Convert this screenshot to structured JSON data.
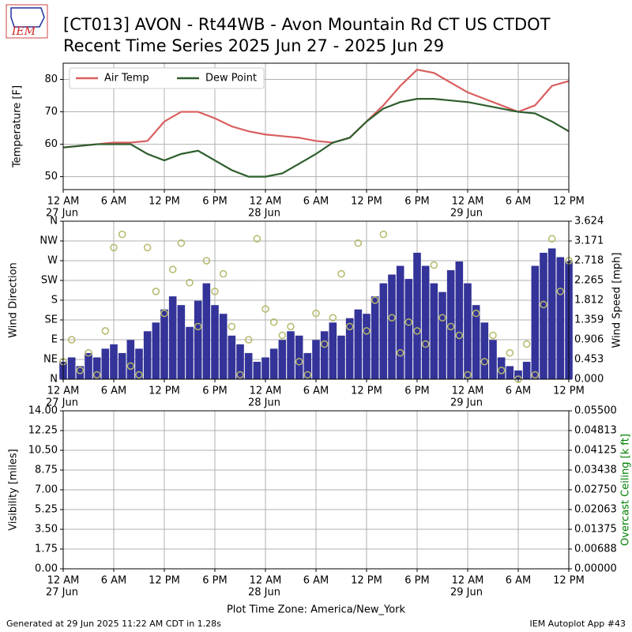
{
  "header": {
    "logo": "IEM",
    "title": [
      "[CT013] AVON - Rt44WB - Avon Mountain Rd CT US  CTDOT",
      "Recent Time Series 2025 Jun 27 - 2025 Jun 29"
    ]
  },
  "footer": {
    "left": "Generated at 29 Jun 2025 11:22 AM CDT in 1.28s",
    "right": "IEM Autoplot App #43"
  },
  "chart_data": [
    {
      "type": "line",
      "ylabel": "Temperature [F]",
      "grid": true,
      "legend": "upper left",
      "xlim": [
        "2025-06-27T00:00",
        "2025-06-29T12:00"
      ],
      "xticks": [
        {
          "value": "2025-06-27T00:00",
          "label": "12 AM"
        },
        {
          "value": "2025-06-27T06:00",
          "label": "6 AM"
        },
        {
          "value": "2025-06-27T12:00",
          "label": "12 PM"
        },
        {
          "value": "2025-06-27T18:00",
          "label": "6 PM"
        },
        {
          "value": "2025-06-28T00:00",
          "label": "12 AM"
        },
        {
          "value": "2025-06-28T06:00",
          "label": "6 AM"
        },
        {
          "value": "2025-06-28T12:00",
          "label": "12 PM"
        },
        {
          "value": "2025-06-28T18:00",
          "label": "6 PM"
        },
        {
          "value": "2025-06-29T00:00",
          "label": "12 AM"
        },
        {
          "value": "2025-06-29T06:00",
          "label": "6 AM"
        },
        {
          "value": "2025-06-29T12:00",
          "label": "12 PM"
        }
      ],
      "xdays": [
        {
          "value": "2025-06-27T00:00",
          "label": "27 Jun"
        },
        {
          "value": "2025-06-28T00:00",
          "label": "28 Jun"
        },
        {
          "value": "2025-06-29T00:00",
          "label": "29 Jun"
        }
      ],
      "ylim": [
        46,
        85
      ],
      "yticks": [
        50,
        60,
        70,
        80
      ],
      "x": [
        "2025-06-27T00:00",
        "2025-06-27T02:00",
        "2025-06-27T04:00",
        "2025-06-27T06:00",
        "2025-06-27T08:00",
        "2025-06-27T10:00",
        "2025-06-27T12:00",
        "2025-06-27T14:00",
        "2025-06-27T16:00",
        "2025-06-27T18:00",
        "2025-06-27T20:00",
        "2025-06-27T22:00",
        "2025-06-28T00:00",
        "2025-06-28T02:00",
        "2025-06-28T04:00",
        "2025-06-28T06:00",
        "2025-06-28T08:00",
        "2025-06-28T10:00",
        "2025-06-28T12:00",
        "2025-06-28T14:00",
        "2025-06-28T16:00",
        "2025-06-28T18:00",
        "2025-06-28T20:00",
        "2025-06-28T22:00",
        "2025-06-29T00:00",
        "2025-06-29T02:00",
        "2025-06-29T04:00",
        "2025-06-29T06:00",
        "2025-06-29T08:00",
        "2025-06-29T10:00",
        "2025-06-29T12:00"
      ],
      "series": [
        {
          "name": "Air Temp",
          "color": "#d95f5f",
          "values": [
            59,
            59.5,
            60,
            60.5,
            60.5,
            61,
            67,
            70,
            70,
            68,
            65.5,
            64,
            63,
            62.5,
            62,
            61,
            60.5,
            62,
            67,
            72,
            78,
            83,
            82,
            79,
            76,
            74,
            72,
            70,
            72,
            78,
            79.5
          ]
        },
        {
          "name": "Dew Point",
          "color": "#2e5e2e",
          "values": [
            59,
            59.5,
            60,
            60,
            60,
            57,
            55,
            57,
            58,
            55,
            52,
            50,
            50,
            51,
            54,
            57,
            60.5,
            62,
            67,
            71,
            73,
            74,
            74,
            73.5,
            73,
            72,
            71,
            70,
            69.5,
            67,
            64
          ]
        }
      ]
    },
    {
      "type": "bar",
      "ylabel": "Wind Direction",
      "y2label": "Wind Speed [mph]",
      "grid": true,
      "xlim": [
        "2025-06-27T00:00",
        "2025-06-29T12:00"
      ],
      "xticks": [
        {
          "value": "2025-06-27T00:00",
          "label": "12 AM"
        },
        {
          "value": "2025-06-27T06:00",
          "label": "6 AM"
        },
        {
          "value": "2025-06-27T12:00",
          "label": "12 PM"
        },
        {
          "value": "2025-06-27T18:00",
          "label": "6 PM"
        },
        {
          "value": "2025-06-28T00:00",
          "label": "12 AM"
        },
        {
          "value": "2025-06-28T06:00",
          "label": "6 AM"
        },
        {
          "value": "2025-06-28T12:00",
          "label": "12 PM"
        },
        {
          "value": "2025-06-28T18:00",
          "label": "6 PM"
        },
        {
          "value": "2025-06-29T00:00",
          "label": "12 AM"
        },
        {
          "value": "2025-06-29T06:00",
          "label": "6 AM"
        },
        {
          "value": "2025-06-29T12:00",
          "label": "12 PM"
        }
      ],
      "xdays": [
        {
          "value": "2025-06-27T00:00",
          "label": "27 Jun"
        },
        {
          "value": "2025-06-28T00:00",
          "label": "28 Jun"
        },
        {
          "value": "2025-06-29T00:00",
          "label": "29 Jun"
        }
      ],
      "ylim": [
        0,
        360
      ],
      "yticks": [
        {
          "value": 0,
          "label": "N"
        },
        {
          "value": 45,
          "label": "NE"
        },
        {
          "value": 90,
          "label": "E"
        },
        {
          "value": 135,
          "label": "SE"
        },
        {
          "value": 180,
          "label": "S"
        },
        {
          "value": 225,
          "label": "SW"
        },
        {
          "value": 270,
          "label": "W"
        },
        {
          "value": 315,
          "label": "NW"
        },
        {
          "value": 360,
          "label": "N"
        }
      ],
      "y2lim": [
        0,
        3.624
      ],
      "y2ticks": [
        {
          "value": 0,
          "label": "0.000"
        },
        0.453,
        0.906,
        1.359,
        1.812,
        2.265,
        2.718,
        3.171,
        3.624
      ],
      "x": [
        "2025-06-27T00:00",
        "2025-06-27T01:00",
        "2025-06-27T02:00",
        "2025-06-27T03:00",
        "2025-06-27T04:00",
        "2025-06-27T05:00",
        "2025-06-27T06:00",
        "2025-06-27T07:00",
        "2025-06-27T08:00",
        "2025-06-27T09:00",
        "2025-06-27T10:00",
        "2025-06-27T11:00",
        "2025-06-27T12:00",
        "2025-06-27T13:00",
        "2025-06-27T14:00",
        "2025-06-27T15:00",
        "2025-06-27T16:00",
        "2025-06-27T17:00",
        "2025-06-27T18:00",
        "2025-06-27T19:00",
        "2025-06-27T20:00",
        "2025-06-27T21:00",
        "2025-06-27T22:00",
        "2025-06-27T23:00",
        "2025-06-28T00:00",
        "2025-06-28T01:00",
        "2025-06-28T02:00",
        "2025-06-28T03:00",
        "2025-06-28T04:00",
        "2025-06-28T05:00",
        "2025-06-28T06:00",
        "2025-06-28T07:00",
        "2025-06-28T08:00",
        "2025-06-28T09:00",
        "2025-06-28T10:00",
        "2025-06-28T11:00",
        "2025-06-28T12:00",
        "2025-06-28T13:00",
        "2025-06-28T14:00",
        "2025-06-28T15:00",
        "2025-06-28T16:00",
        "2025-06-28T17:00",
        "2025-06-28T18:00",
        "2025-06-28T19:00",
        "2025-06-28T20:00",
        "2025-06-28T21:00",
        "2025-06-28T22:00",
        "2025-06-28T23:00",
        "2025-06-29T00:00",
        "2025-06-29T01:00",
        "2025-06-29T02:00",
        "2025-06-29T03:00",
        "2025-06-29T04:00",
        "2025-06-29T05:00",
        "2025-06-29T06:00",
        "2025-06-29T07:00",
        "2025-06-29T08:00",
        "2025-06-29T09:00",
        "2025-06-29T10:00",
        "2025-06-29T11:00",
        "2025-06-29T12:00"
      ],
      "series": [
        {
          "type": "bar",
          "axis": "y2",
          "color": "#333399",
          "values": [
            0.4,
            0.5,
            0.3,
            0.6,
            0.5,
            0.7,
            0.8,
            0.6,
            0.9,
            0.7,
            1.1,
            1.3,
            1.6,
            1.9,
            1.7,
            1.2,
            1.8,
            2.2,
            1.7,
            1.5,
            1.0,
            0.8,
            0.6,
            0.4,
            0.5,
            0.7,
            0.9,
            1.1,
            1.0,
            0.6,
            0.9,
            1.1,
            1.3,
            1.0,
            1.4,
            1.6,
            1.5,
            1.9,
            2.2,
            2.4,
            2.6,
            2.3,
            2.9,
            2.6,
            2.2,
            2.0,
            2.5,
            2.7,
            2.2,
            1.7,
            1.3,
            0.9,
            0.5,
            0.3,
            0.2,
            0.4,
            2.6,
            2.9,
            3.0,
            2.8,
            2.7
          ]
        },
        {
          "type": "scatter",
          "color": "#b5b86a",
          "values": [
            40,
            90,
            20,
            60,
            10,
            110,
            300,
            330,
            30,
            10,
            300,
            200,
            150,
            250,
            310,
            220,
            120,
            270,
            200,
            240,
            120,
            10,
            90,
            320,
            160,
            130,
            100,
            120,
            40,
            10,
            150,
            80,
            140,
            240,
            120,
            310,
            110,
            180,
            330,
            140,
            60,
            130,
            110,
            80,
            260,
            140,
            120,
            100,
            10,
            150,
            40,
            100,
            20,
            60,
            0,
            80,
            10,
            170,
            320,
            200,
            270
          ]
        }
      ]
    },
    {
      "type": "line",
      "ylabel": "Visibility [miles]",
      "y2label": "Overcast Ceiling [k ft]",
      "y2label_color": "#008000",
      "grid": true,
      "xlabel": "Plot Time Zone: America/New_York",
      "xlim": [
        "2025-06-27T00:00",
        "2025-06-29T12:00"
      ],
      "xticks": [
        {
          "value": "2025-06-27T00:00",
          "label": "12 AM"
        },
        {
          "value": "2025-06-27T06:00",
          "label": "6 AM"
        },
        {
          "value": "2025-06-27T12:00",
          "label": "12 PM"
        },
        {
          "value": "2025-06-27T18:00",
          "label": "6 PM"
        },
        {
          "value": "2025-06-28T00:00",
          "label": "12 AM"
        },
        {
          "value": "2025-06-28T06:00",
          "label": "6 AM"
        },
        {
          "value": "2025-06-28T12:00",
          "label": "12 PM"
        },
        {
          "value": "2025-06-28T18:00",
          "label": "6 PM"
        },
        {
          "value": "2025-06-29T00:00",
          "label": "12 AM"
        },
        {
          "value": "2025-06-29T06:00",
          "label": "6 AM"
        },
        {
          "value": "2025-06-29T12:00",
          "label": "12 PM"
        }
      ],
      "xdays": [
        {
          "value": "2025-06-27T00:00",
          "label": "27 Jun"
        },
        {
          "value": "2025-06-28T00:00",
          "label": "28 Jun"
        },
        {
          "value": "2025-06-29T00:00",
          "label": "29 Jun"
        }
      ],
      "ylim": [
        0,
        14
      ],
      "yticks": [
        {
          "value": 0,
          "label": "0.00"
        },
        1.75,
        {
          "value": 3.5,
          "label": "3.50"
        },
        5.25,
        {
          "value": 7,
          "label": "7.00"
        },
        8.75,
        {
          "value": 10.5,
          "label": "10.50"
        },
        12.25,
        {
          "value": 14,
          "label": "14.00"
        }
      ],
      "y2lim": [
        0,
        0.055
      ],
      "y2ticks": [
        {
          "value": 0,
          "label": "0.00000"
        },
        {
          "value": 0.006875,
          "label": "0.00688"
        },
        {
          "value": 0.01375,
          "label": "0.01375"
        },
        {
          "value": 0.020625,
          "label": "0.02063"
        },
        {
          "value": 0.0275,
          "label": "0.02750"
        },
        {
          "value": 0.034375,
          "label": "0.03438"
        },
        {
          "value": 0.04125,
          "label": "0.04125"
        },
        {
          "value": 0.048125,
          "label": "0.04813"
        },
        {
          "value": 0.055,
          "label": "0.05500"
        }
      ]
    }
  ]
}
